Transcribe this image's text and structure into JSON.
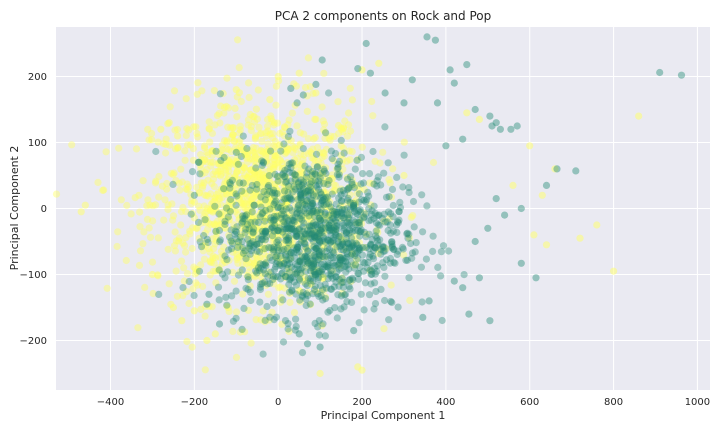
{
  "chart_data": {
    "type": "scatter",
    "title": "PCA 2 components on Rock and Pop",
    "xlabel": "Principal Component 1",
    "ylabel": "Principal Component 2",
    "xlim": [
      -530,
      1030
    ],
    "ylim": [
      -275,
      275
    ],
    "xticks": [
      -400,
      -200,
      0,
      200,
      400,
      600,
      800,
      1000
    ],
    "yticks": [
      -200,
      -100,
      0,
      100,
      200
    ],
    "grid": true,
    "colors": {
      "background": "#eaeaf2",
      "grid": "#ffffff",
      "pop": "#ffff66",
      "rock": "#238a73"
    },
    "series": [
      {
        "color": "#ffff66",
        "cluster": {
          "center": [
            -40,
            10
          ],
          "std": [
            130,
            75
          ],
          "n": 1300
        },
        "points": [
          [
            -470,
            -5
          ],
          [
            -460,
            5
          ],
          [
            -300,
            -100
          ],
          [
            -280,
            120
          ],
          [
            -260,
            130
          ],
          [
            -250,
            -150
          ],
          [
            -240,
            110
          ],
          [
            -230,
            -170
          ],
          [
            860,
            140
          ],
          [
            800,
            -95
          ],
          [
            760,
            -25
          ],
          [
            720,
            -45
          ],
          [
            640,
            -55
          ],
          [
            610,
            -40
          ],
          [
            200,
            -245
          ],
          [
            190,
            -240
          ],
          [
            100,
            -250
          ],
          [
            300,
            50
          ],
          [
            450,
            145
          ],
          [
            480,
            135
          ],
          [
            560,
            35
          ],
          [
            660,
            60
          ],
          [
            600,
            95
          ],
          [
            630,
            20
          ],
          [
            200,
            210
          ],
          [
            240,
            220
          ],
          [
            -150,
            -190
          ],
          [
            -200,
            -155
          ],
          [
            -170,
            -200
          ],
          [
            -100,
            180
          ],
          [
            0,
            200
          ],
          [
            50,
            205
          ],
          [
            90,
            175
          ],
          [
            -20,
            165
          ]
        ]
      },
      {
        "color": "#238a73",
        "cluster": {
          "center": [
            80,
            -40
          ],
          "std": [
            110,
            60
          ],
          "n": 1100
        },
        "points": [
          [
            910,
            206
          ],
          [
            962,
            202
          ],
          [
            355,
            260
          ],
          [
            375,
            255
          ],
          [
            210,
            250
          ],
          [
            105,
            225
          ],
          [
            190,
            212
          ],
          [
            220,
            205
          ],
          [
            410,
            210
          ],
          [
            450,
            218
          ],
          [
            320,
            195
          ],
          [
            420,
            190
          ],
          [
            380,
            160
          ],
          [
            470,
            150
          ],
          [
            510,
            125
          ],
          [
            530,
            120
          ],
          [
            555,
            120
          ],
          [
            570,
            125
          ],
          [
            520,
            130
          ],
          [
            505,
            140
          ],
          [
            640,
            35
          ],
          [
            665,
            60
          ],
          [
            710,
            57
          ],
          [
            580,
            0
          ],
          [
            615,
            -105
          ],
          [
            580,
            -83
          ],
          [
            540,
            -10
          ],
          [
            500,
            -30
          ],
          [
            480,
            -105
          ],
          [
            505,
            -170
          ],
          [
            360,
            -140
          ],
          [
            345,
            -165
          ],
          [
            180,
            -185
          ],
          [
            100,
            -210
          ],
          [
            70,
            -205
          ],
          [
            50,
            -190
          ],
          [
            -165,
            -130
          ],
          [
            -170,
            -145
          ],
          [
            -140,
            -175
          ],
          [
            90,
            188
          ],
          [
            30,
            182
          ],
          [
            60,
            172
          ],
          [
            45,
            160
          ],
          [
            255,
            175
          ],
          [
            300,
            160
          ],
          [
            400,
            95
          ],
          [
            440,
            105
          ],
          [
            -190,
            70
          ],
          [
            -200,
            20
          ],
          [
            -130,
            30
          ],
          [
            -100,
            85
          ],
          [
            440,
            -120
          ],
          [
            420,
            -110
          ],
          [
            470,
            -50
          ],
          [
            520,
            15
          ],
          [
            455,
            -160
          ]
        ]
      }
    ]
  }
}
